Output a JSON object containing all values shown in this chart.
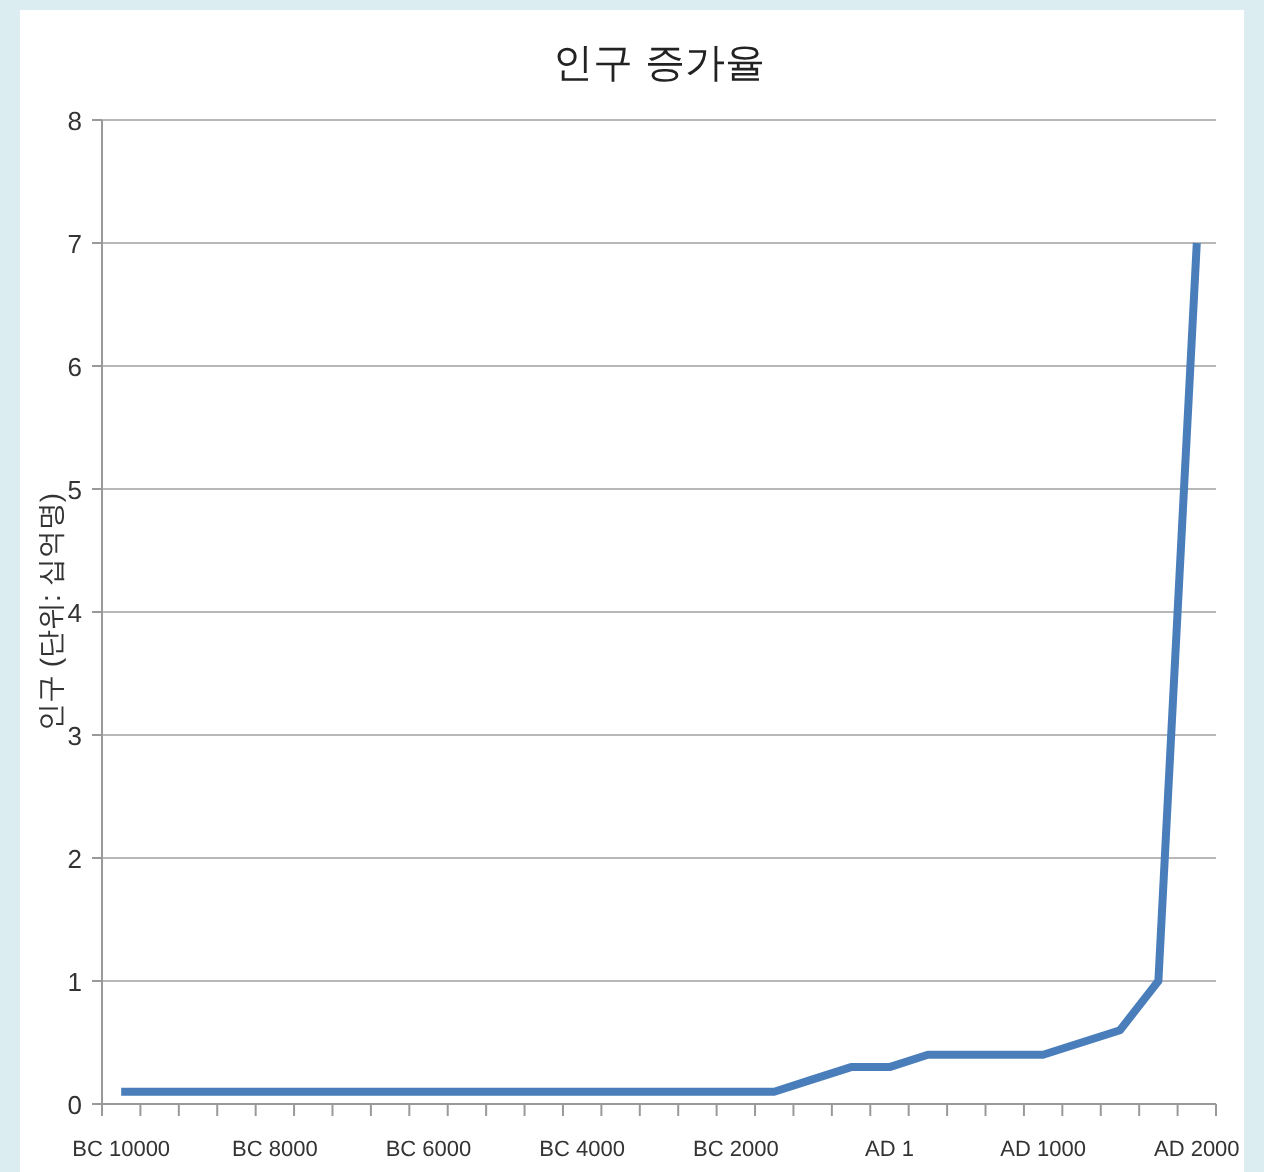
{
  "chart_data": {
    "type": "line",
    "title": "인구 증가율",
    "ylabel": "인구 (단위: 십억명)",
    "categories": [
      "BC 10000",
      null,
      null,
      null,
      "BC 8000",
      null,
      null,
      null,
      "BC 6000",
      null,
      null,
      null,
      "BC 4000",
      null,
      null,
      null,
      "BC 2000",
      null,
      null,
      null,
      "AD 1",
      null,
      null,
      null,
      "AD 1000",
      null,
      null,
      null,
      "AD 2000"
    ],
    "series": [
      {
        "color": "#4a7ebb",
        "values": [
          0.1,
          0.1,
          0.1,
          0.1,
          0.1,
          0.1,
          0.1,
          0.1,
          0.1,
          0.1,
          0.1,
          0.1,
          0.1,
          0.1,
          0.1,
          0.1,
          0.1,
          0.1,
          0.2,
          0.3,
          0.3,
          0.4,
          0.4,
          0.4,
          0.4,
          0.5,
          0.6,
          1,
          7
        ]
      }
    ],
    "ylim": [
      0,
      8
    ],
    "yticks": [
      0,
      1,
      2,
      3,
      4,
      5,
      6,
      7,
      8
    ],
    "grid": "y",
    "marker": "none",
    "line_style": "solid"
  }
}
